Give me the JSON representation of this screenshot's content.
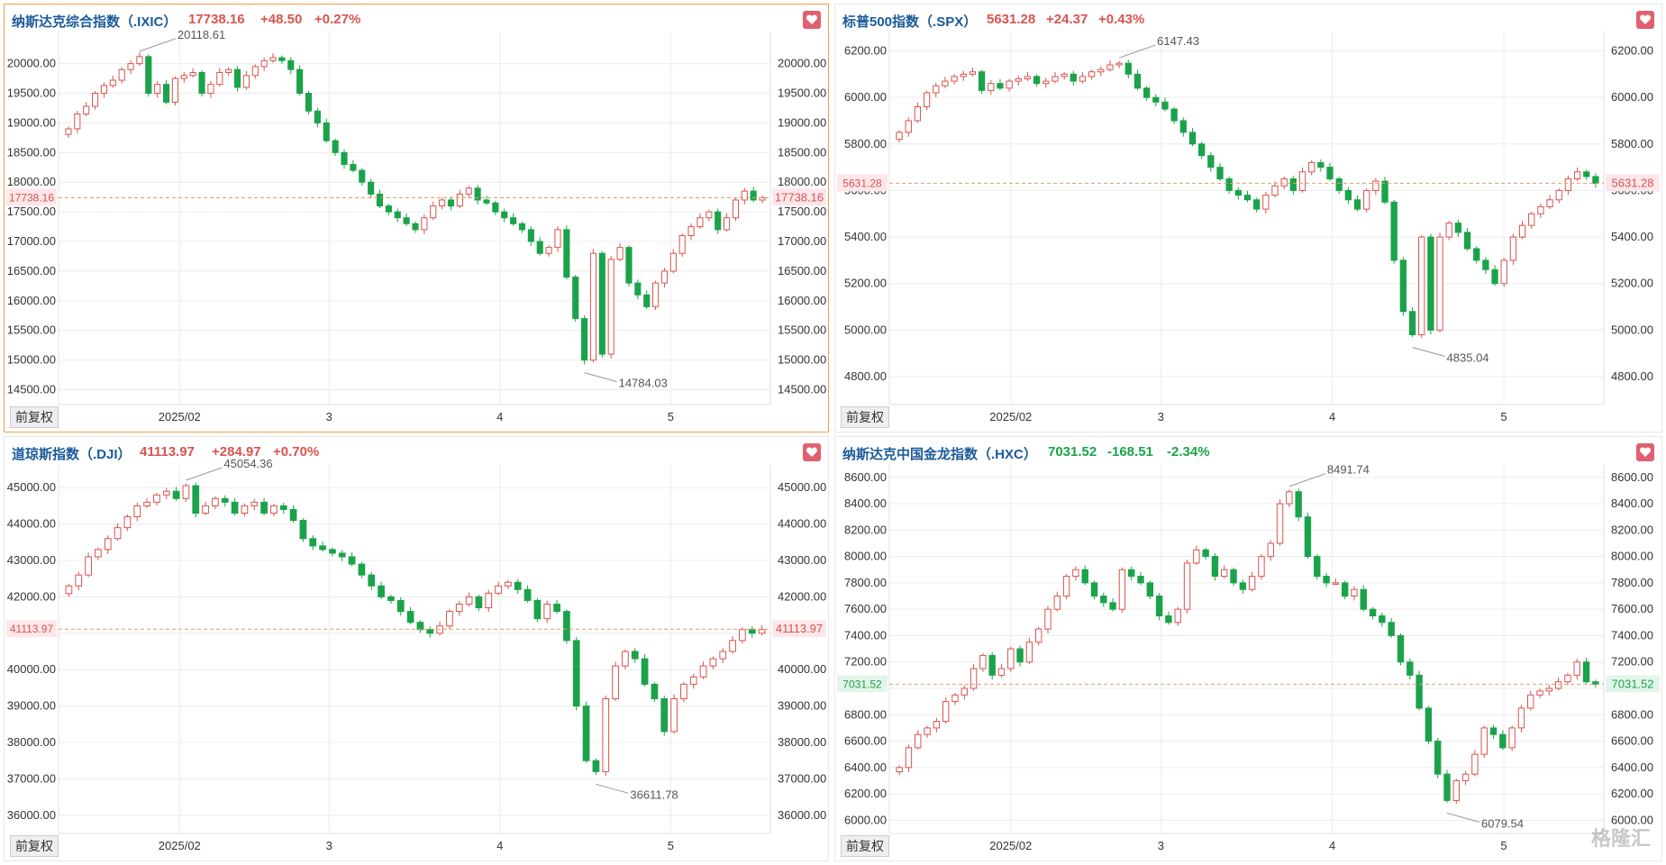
{
  "panels": [
    {
      "name": "纳斯达克综合指数（.IXIC）",
      "last": "17738.16",
      "change": "+48.50",
      "pct": "+0.27%",
      "dir": "up",
      "last_num": 17738.16,
      "last_label": "17738.16",
      "adj_label": "前复权",
      "y_ticks": [
        "20000.00",
        "19500.00",
        "19000.00",
        "18500.00",
        "18000.00",
        "17500.00",
        "17000.00",
        "16500.00",
        "16000.00",
        "15500.00",
        "15000.00",
        "14500.00"
      ],
      "y_min": 14250,
      "y_max": 20450,
      "high_label": "20118.61",
      "low_label": "14784.03",
      "x_labels": [
        "2025/02",
        "3",
        "4",
        "5"
      ]
    },
    {
      "name": "标普500指数（.SPX）",
      "last": "5631.28",
      "change": "+24.37",
      "pct": "+0.43%",
      "dir": "up",
      "last_num": 5631.28,
      "last_label": "5631.28",
      "adj_label": "前复权",
      "y_ticks": [
        "6200.00",
        "6000.00",
        "5800.00",
        "5600.00",
        "5400.00",
        "5200.00",
        "5000.00",
        "4800.00"
      ],
      "y_min": 4680,
      "y_max": 6260,
      "high_label": "6147.43",
      "low_label": "4835.04",
      "x_labels": [
        "2025/02",
        "3",
        "4",
        "5"
      ]
    },
    {
      "name": "道琼斯指数（.DJI）",
      "last": "41113.97",
      "change": "+284.97",
      "pct": "+0.70%",
      "dir": "up",
      "last_num": 41113.97,
      "last_label": "41113.97",
      "adj_label": "前复权",
      "y_ticks": [
        "45000.00",
        "44000.00",
        "43000.00",
        "42000.00",
        "41000.00",
        "40000.00",
        "39000.00",
        "38000.00",
        "37000.00",
        "36000.00"
      ],
      "y_min": 35500,
      "y_max": 45500,
      "high_label": "45054.36",
      "low_label": "36611.78",
      "x_labels": [
        "2025/02",
        "3",
        "4",
        "5"
      ]
    },
    {
      "name": "纳斯达克中国金龙指数（.HXC）",
      "last": "7031.52",
      "change": "-168.51",
      "pct": "-2.34%",
      "dir": "down",
      "last_num": 7031.52,
      "last_label": "7031.52",
      "adj_label": "前复权",
      "y_ticks": [
        "8600.00",
        "8400.00",
        "8200.00",
        "8000.00",
        "7800.00",
        "7600.00",
        "7400.00",
        "7200.00",
        "7000.00",
        "6800.00",
        "6600.00",
        "6400.00",
        "6200.00",
        "6000.00"
      ],
      "y_min": 5900,
      "y_max": 8660,
      "high_label": "8491.74",
      "low_label": "6079.54",
      "x_labels": [
        "2025/02",
        "3",
        "4",
        "5"
      ]
    }
  ],
  "colors": {
    "up": "#d9534f",
    "down": "#1aa34a",
    "name": "#1a5a9a",
    "grid": "#ececec",
    "dash": "#e0a060"
  },
  "watermark": "格隆汇",
  "chart_data": [
    {
      "type": "candlestick",
      "title": "纳斯达克综合指数（.IXIC）",
      "ylim": [
        14250,
        20450
      ],
      "x_ticks": [
        "2025/02",
        "3",
        "4",
        "5"
      ],
      "close": [
        18900,
        19150,
        19280,
        19500,
        19630,
        19720,
        19900,
        20000,
        20118,
        19500,
        19650,
        19350,
        19750,
        19800,
        19850,
        19500,
        19650,
        19850,
        19900,
        19600,
        19800,
        19950,
        20050,
        20100,
        20050,
        19900,
        19500,
        19200,
        19000,
        18700,
        18500,
        18300,
        18200,
        18000,
        17800,
        17600,
        17500,
        17400,
        17300,
        17200,
        17400,
        17600,
        17700,
        17600,
        17800,
        17900,
        17700,
        17650,
        17500,
        17400,
        17300,
        17200,
        17000,
        16800,
        16900,
        17200,
        16400,
        15700,
        15000,
        16800,
        15100,
        16700,
        16900,
        16300,
        16100,
        15900,
        16300,
        16500,
        16800,
        17100,
        17250,
        17400,
        17500,
        17200,
        17400,
        17700,
        17850,
        17700,
        17738
      ]
    },
    {
      "type": "candlestick",
      "title": "标普500指数（.SPX）",
      "ylim": [
        4680,
        6260
      ],
      "x_ticks": [
        "2025/02",
        "3",
        "4",
        "5"
      ],
      "close": [
        5850,
        5900,
        5960,
        6020,
        6050,
        6070,
        6090,
        6100,
        6110,
        6030,
        6060,
        6040,
        6070,
        6080,
        6090,
        6060,
        6070,
        6090,
        6100,
        6070,
        6090,
        6110,
        6120,
        6140,
        6147,
        6100,
        6040,
        6000,
        5980,
        5950,
        5900,
        5850,
        5800,
        5750,
        5700,
        5650,
        5600,
        5580,
        5560,
        5520,
        5580,
        5620,
        5650,
        5600,
        5680,
        5720,
        5700,
        5650,
        5600,
        5560,
        5520,
        5600,
        5640,
        5550,
        5300,
        5080,
        4980,
        5400,
        5000,
        5400,
        5460,
        5420,
        5350,
        5300,
        5260,
        5200,
        5300,
        5400,
        5450,
        5500,
        5530,
        5560,
        5600,
        5650,
        5680,
        5660,
        5631
      ]
    },
    {
      "type": "candlestick",
      "title": "道琼斯指数（.DJI）",
      "ylim": [
        35500,
        45500
      ],
      "x_ticks": [
        "2025/02",
        "3",
        "4",
        "5"
      ],
      "close": [
        42300,
        42600,
        43100,
        43300,
        43600,
        43900,
        44200,
        44500,
        44600,
        44800,
        44900,
        44700,
        45054,
        44300,
        44500,
        44700,
        44600,
        44300,
        44500,
        44600,
        44300,
        44500,
        44400,
        44100,
        43600,
        43400,
        43300,
        43200,
        43100,
        42900,
        42600,
        42300,
        42000,
        41900,
        41600,
        41300,
        41100,
        41000,
        41200,
        41600,
        41800,
        42000,
        41700,
        42100,
        42300,
        42400,
        42200,
        41900,
        41400,
        41800,
        41600,
        40800,
        39000,
        37500,
        37200,
        39200,
        40100,
        40500,
        40300,
        39600,
        39200,
        38300,
        39200,
        39600,
        39800,
        40100,
        40300,
        40500,
        40800,
        41100,
        41000,
        41100
      ]
    },
    {
      "type": "candlestick",
      "title": "纳斯达克中国金龙指数（.HXC）",
      "ylim": [
        5900,
        8660
      ],
      "x_ticks": [
        "2025/02",
        "3",
        "4",
        "5"
      ],
      "close": [
        6400,
        6550,
        6650,
        6700,
        6750,
        6900,
        6950,
        7000,
        7150,
        7250,
        7100,
        7150,
        7300,
        7200,
        7350,
        7450,
        7600,
        7700,
        7850,
        7900,
        7800,
        7700,
        7650,
        7600,
        7900,
        7850,
        7800,
        7700,
        7550,
        7500,
        7600,
        7950,
        8050,
        8000,
        7850,
        7900,
        7800,
        7750,
        7850,
        8000,
        8100,
        8400,
        8491,
        8300,
        8000,
        7850,
        7800,
        7800,
        7700,
        7750,
        7600,
        7550,
        7500,
        7400,
        7200,
        7100,
        6850,
        6600,
        6350,
        6150,
        6300,
        6350,
        6500,
        6700,
        6650,
        6550,
        6700,
        6850,
        6950,
        6980,
        7000,
        7050,
        7100,
        7200,
        7050,
        7031
      ]
    }
  ]
}
